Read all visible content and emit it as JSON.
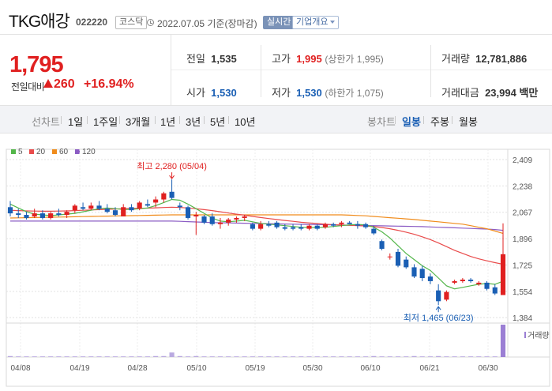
{
  "header": {
    "stock_name": "TKG애강",
    "stock_code": "022220",
    "market": "코스닥",
    "date": "2022.07.05 기준(장마감)",
    "live_label": "실시간",
    "company_info_label": "기업개요"
  },
  "quote": {
    "current_price": "1,795",
    "change_label": "전일대비",
    "change_value": "260",
    "change_percent": "+16.94%",
    "prev_close_label": "전일",
    "prev_close": "1,535",
    "high_label": "고가",
    "high": "1,995",
    "upper_limit": "(상한가 1,995)",
    "volume_label": "거래량",
    "volume": "12,781,886",
    "open_label": "시가",
    "open": "1,530",
    "low_label": "저가",
    "low": "1,530",
    "lower_limit": "(하한가 1,075)",
    "amount_label": "거래대금",
    "amount": "23,994 백만"
  },
  "period_bar": {
    "line_chart_label": "선차트",
    "line_periods": [
      "1일",
      "1주일",
      "3개월",
      "1년",
      "3년",
      "5년",
      "10년"
    ],
    "candle_chart_label": "봉차트",
    "candle_periods": [
      "일봉",
      "주봉",
      "월봉"
    ],
    "active_candle": "일봉"
  },
  "colors": {
    "up": "#e02020",
    "down": "#1a5fb4",
    "ma5": "#53b64a",
    "ma20": "#e94b4b",
    "ma60": "#f08c1c",
    "ma120": "#8b5cc4"
  },
  "chart_data": {
    "type": "candlestick",
    "legend": [
      {
        "name": "5",
        "color": "#53b64a"
      },
      {
        "name": "20",
        "color": "#e94b4b"
      },
      {
        "name": "60",
        "color": "#f08c1c"
      },
      {
        "name": "120",
        "color": "#8b5cc4"
      }
    ],
    "y_ticks": [
      "2,409",
      "2,238",
      "2,067",
      "1,896",
      "1,725",
      "1,554",
      "1,384"
    ],
    "ylim": [
      1384,
      2409
    ],
    "x_ticks": [
      "04/08",
      "04/19",
      "04/28",
      "05/10",
      "05/19",
      "05/30",
      "06/10",
      "06/21",
      "06/30"
    ],
    "volume_label": "거래량",
    "max_annotation": "최고 2,280 (05/04)",
    "min_annotation": "최저 1,465 (06/23)",
    "candles": [
      {
        "o": 2100,
        "h": 2140,
        "l": 2040,
        "c": 2060
      },
      {
        "o": 2060,
        "h": 2090,
        "l": 2030,
        "c": 2050
      },
      {
        "o": 2050,
        "h": 2070,
        "l": 2020,
        "c": 2030
      },
      {
        "o": 2040,
        "h": 2090,
        "l": 2030,
        "c": 2060
      },
      {
        "o": 2060,
        "h": 2080,
        "l": 2020,
        "c": 2030
      },
      {
        "o": 2030,
        "h": 2070,
        "l": 2020,
        "c": 2060
      },
      {
        "o": 2060,
        "h": 2090,
        "l": 2040,
        "c": 2050
      },
      {
        "o": 2050,
        "h": 2080,
        "l": 2030,
        "c": 2070
      },
      {
        "o": 2080,
        "h": 2120,
        "l": 2060,
        "c": 2110
      },
      {
        "o": 2100,
        "h": 2130,
        "l": 2080,
        "c": 2090
      },
      {
        "o": 2090,
        "h": 2130,
        "l": 2080,
        "c": 2110
      },
      {
        "o": 2110,
        "h": 2140,
        "l": 2080,
        "c": 2090
      },
      {
        "o": 2090,
        "h": 2120,
        "l": 2060,
        "c": 2070
      },
      {
        "o": 2080,
        "h": 2100,
        "l": 2040,
        "c": 2050
      },
      {
        "o": 2040,
        "h": 2120,
        "l": 2040,
        "c": 2100
      },
      {
        "o": 2100,
        "h": 2120,
        "l": 2070,
        "c": 2080
      },
      {
        "o": 2090,
        "h": 2140,
        "l": 2080,
        "c": 2130
      },
      {
        "o": 2120,
        "h": 2150,
        "l": 2100,
        "c": 2110
      },
      {
        "o": 2130,
        "h": 2170,
        "l": 2100,
        "c": 2150
      },
      {
        "o": 2150,
        "h": 2200,
        "l": 2130,
        "c": 2190
      },
      {
        "o": 2200,
        "h": 2280,
        "l": 2150,
        "c": 2160
      },
      {
        "o": 2110,
        "h": 2130,
        "l": 2080,
        "c": 2100
      },
      {
        "o": 2100,
        "h": 2110,
        "l": 2020,
        "c": 2030
      },
      {
        "o": 2040,
        "h": 2070,
        "l": 1920,
        "c": 2050
      },
      {
        "o": 2040,
        "h": 2050,
        "l": 1990,
        "c": 2000
      },
      {
        "o": 2040,
        "h": 2060,
        "l": 1980,
        "c": 1990
      },
      {
        "o": 1990,
        "h": 2030,
        "l": 1960,
        "c": 2000
      },
      {
        "o": 2000,
        "h": 2030,
        "l": 1980,
        "c": 2020
      },
      {
        "o": 2020,
        "h": 2040,
        "l": 2000,
        "c": 2030
      },
      {
        "o": 2030,
        "h": 2050,
        "l": 2010,
        "c": 2040
      },
      {
        "o": 1990,
        "h": 2000,
        "l": 1950,
        "c": 1960
      },
      {
        "o": 1960,
        "h": 2010,
        "l": 1950,
        "c": 1990
      },
      {
        "o": 1990,
        "h": 2010,
        "l": 1970,
        "c": 1980
      },
      {
        "o": 2000,
        "h": 2010,
        "l": 1960,
        "c": 1970
      },
      {
        "o": 1970,
        "h": 1990,
        "l": 1950,
        "c": 1960
      },
      {
        "o": 1970,
        "h": 1990,
        "l": 1950,
        "c": 1960
      },
      {
        "o": 1970,
        "h": 1990,
        "l": 1950,
        "c": 1960
      },
      {
        "o": 1960,
        "h": 1990,
        "l": 1950,
        "c": 1980
      },
      {
        "o": 1980,
        "h": 1990,
        "l": 1950,
        "c": 1960
      },
      {
        "o": 1970,
        "h": 2000,
        "l": 1960,
        "c": 1990
      },
      {
        "o": 1990,
        "h": 2000,
        "l": 1970,
        "c": 1980
      },
      {
        "o": 1990,
        "h": 2010,
        "l": 1970,
        "c": 2000
      },
      {
        "o": 2000,
        "h": 2010,
        "l": 1990,
        "c": 1990
      },
      {
        "o": 1990,
        "h": 2010,
        "l": 1960,
        "c": 1980
      },
      {
        "o": 1990,
        "h": 2000,
        "l": 1960,
        "c": 1970
      },
      {
        "o": 1960,
        "h": 1980,
        "l": 1920,
        "c": 1930
      },
      {
        "o": 1880,
        "h": 1890,
        "l": 1820,
        "c": 1830
      },
      {
        "o": 1780,
        "h": 1800,
        "l": 1760,
        "c": 1780
      },
      {
        "o": 1810,
        "h": 1830,
        "l": 1710,
        "c": 1720
      },
      {
        "o": 1760,
        "h": 1780,
        "l": 1700,
        "c": 1710
      },
      {
        "o": 1710,
        "h": 1730,
        "l": 1640,
        "c": 1650
      },
      {
        "o": 1700,
        "h": 1720,
        "l": 1620,
        "c": 1640
      },
      {
        "o": 1650,
        "h": 1670,
        "l": 1600,
        "c": 1620
      },
      {
        "o": 1560,
        "h": 1600,
        "l": 1465,
        "c": 1490
      },
      {
        "o": 1500,
        "h": 1560,
        "l": 1490,
        "c": 1550
      },
      {
        "o": 1610,
        "h": 1630,
        "l": 1600,
        "c": 1620
      },
      {
        "o": 1620,
        "h": 1640,
        "l": 1610,
        "c": 1630
      },
      {
        "o": 1630,
        "h": 1640,
        "l": 1610,
        "c": 1620
      },
      {
        "o": 1600,
        "h": 1620,
        "l": 1590,
        "c": 1610
      },
      {
        "o": 1610,
        "h": 1620,
        "l": 1560,
        "c": 1570
      },
      {
        "o": 1580,
        "h": 1600,
        "l": 1530,
        "c": 1540
      },
      {
        "o": 1530,
        "h": 1995,
        "l": 1530,
        "c": 1795
      }
    ],
    "ma5": [
      2120,
      2095,
      2070,
      2055,
      2050,
      2045,
      2050,
      2055,
      2060,
      2070,
      2080,
      2090,
      2095,
      2090,
      2085,
      2085,
      2090,
      2095,
      2110,
      2130,
      2150,
      2145,
      2120,
      2090,
      2060,
      2030,
      2010,
      2005,
      2010,
      2015,
      2005,
      1995,
      1990,
      1985,
      1980,
      1975,
      1970,
      1968,
      1968,
      1970,
      1975,
      1980,
      1985,
      1988,
      1985,
      1970,
      1940,
      1900,
      1850,
      1800,
      1760,
      1720,
      1690,
      1640,
      1590,
      1570,
      1580,
      1590,
      1600,
      1605,
      1600,
      1620
    ],
    "ma20": [
      2080,
      2078,
      2076,
      2075,
      2074,
      2074,
      2075,
      2076,
      2078,
      2080,
      2082,
      2084,
      2086,
      2088,
      2090,
      2092,
      2093,
      2094,
      2096,
      2098,
      2100,
      2098,
      2095,
      2090,
      2084,
      2078,
      2070,
      2062,
      2055,
      2048,
      2040,
      2033,
      2026,
      2020,
      2014,
      2008,
      2002,
      1998,
      1994,
      1990,
      1986,
      1984,
      1982,
      1980,
      1978,
      1974,
      1968,
      1960,
      1950,
      1938,
      1924,
      1908,
      1890,
      1868,
      1844,
      1820,
      1800,
      1780,
      1765,
      1752,
      1740,
      1730
    ],
    "ma60": [
      2030,
      2031,
      2032,
      2033,
      2034,
      2035,
      2036,
      2037,
      2038,
      2039,
      2040,
      2041,
      2042,
      2043,
      2044,
      2045,
      2046,
      2047,
      2048,
      2049,
      2050,
      2050,
      2050,
      2050,
      2050,
      2050,
      2050,
      2050,
      2050,
      2050,
      2050,
      2050,
      2050,
      2050,
      2050,
      2050,
      2050,
      2050,
      2050,
      2050,
      2050,
      2050,
      2048,
      2046,
      2044,
      2040,
      2036,
      2032,
      2028,
      2024,
      2020,
      2015,
      2010,
      2005,
      2000,
      1995,
      1990,
      1980,
      1970,
      1960,
      1945,
      1930
    ],
    "ma120": [
      2010,
      2010,
      2010,
      2010,
      2010,
      2010,
      2010,
      2010,
      2010,
      2010,
      2010,
      2010,
      2010,
      2010,
      2010,
      2010,
      2010,
      2010,
      2010,
      2010,
      2010,
      2008,
      2006,
      2004,
      2002,
      2000,
      1999,
      1998,
      1997,
      1996,
      1995,
      1994,
      1993,
      1992,
      1991,
      1990,
      1989,
      1988,
      1987,
      1986,
      1985,
      1984,
      1983,
      1982,
      1981,
      1980,
      1979,
      1978,
      1977,
      1976,
      1975,
      1974,
      1972,
      1970,
      1968,
      1966,
      1964,
      1962,
      1960,
      1958,
      1955,
      1950
    ],
    "volume": [
      3,
      2,
      2,
      2,
      2,
      2,
      2,
      2,
      2,
      2,
      2,
      2,
      2,
      2,
      2,
      2,
      2,
      2,
      3,
      3,
      14,
      3,
      2,
      3,
      2,
      2,
      2,
      2,
      2,
      2,
      2,
      2,
      2,
      2,
      2,
      2,
      2,
      2,
      2,
      2,
      2,
      2,
      2,
      2,
      2,
      3,
      2,
      2,
      2,
      2,
      3,
      2,
      2,
      3,
      2,
      2,
      2,
      2,
      2,
      2,
      2,
      100
    ]
  }
}
